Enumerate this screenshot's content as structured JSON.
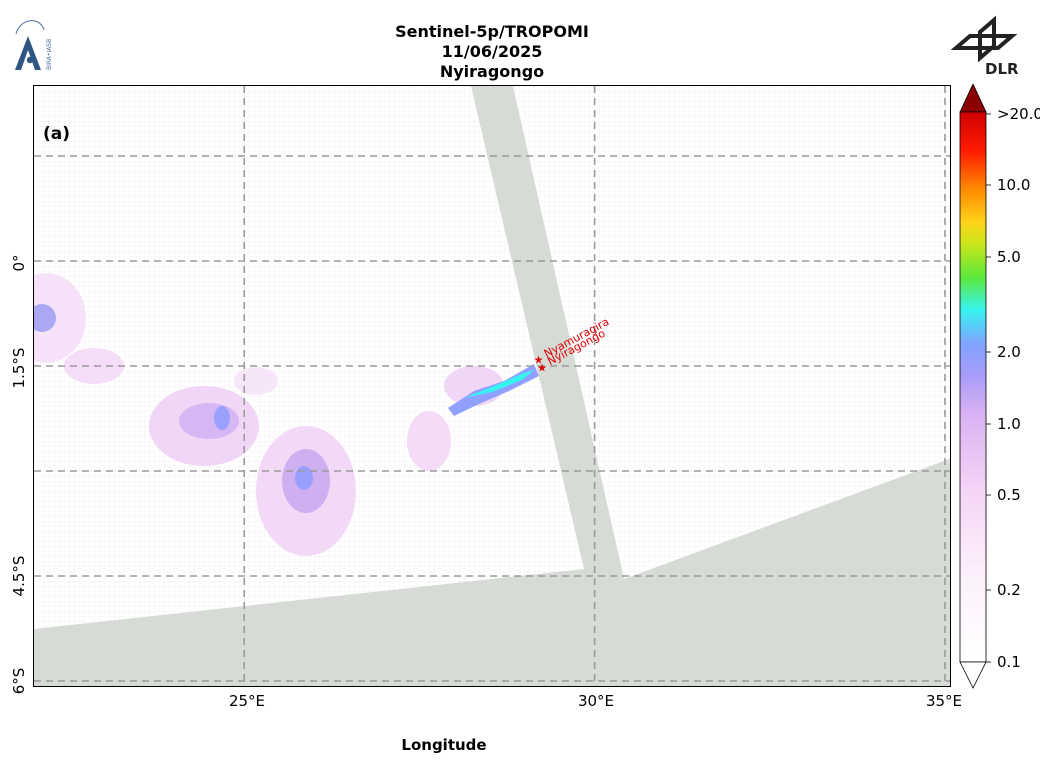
{
  "header": {
    "title_line1": "Sentinel-5p/TROPOMI",
    "title_line2": "11/06/2025",
    "title_line3": "Nyiragongo"
  },
  "logos": {
    "left_text": "BIRA-IASB",
    "right_text": "DLR"
  },
  "map": {
    "panel_label": "(a)",
    "x_axis_label": "Longitude",
    "x_ticks": [
      "25°E",
      "30°E",
      "35°E"
    ],
    "y_ticks": [
      "0°",
      "1.5°S",
      "4.5°S",
      "6°S"
    ],
    "lon_range": [
      22,
      35.1
    ],
    "lat_range": [
      -6.1,
      2.5
    ],
    "gridlines_lon": [
      25,
      30,
      35
    ],
    "gridlines_lat": [
      1.5,
      0,
      -1.5,
      -3,
      -4.5,
      -6
    ],
    "grid": true,
    "no_data_color": "#d6dbd5",
    "volcanoes": [
      {
        "name": "Nyamuragira",
        "lon": 29.2,
        "lat": -1.41
      },
      {
        "name": "Nyiragongo",
        "lon": 29.25,
        "lat": -1.52
      }
    ],
    "marker_color": "#e00000"
  },
  "colorbar": {
    "ticks": [
      "0.1",
      "0.2",
      "0.5",
      "1.0",
      "2.0",
      "5.0",
      "10.0",
      ">20.0"
    ],
    "scale": "log",
    "extend": "both",
    "colors": [
      "#ffffff",
      "#fde8fb",
      "#eab8f5",
      "#c7a2f0",
      "#8f9cff",
      "#37f3f0",
      "#5ee83a",
      "#b8e61e",
      "#ffd21a",
      "#ff8a00",
      "#ff2a00",
      "#e00000",
      "#8b0000"
    ]
  }
}
